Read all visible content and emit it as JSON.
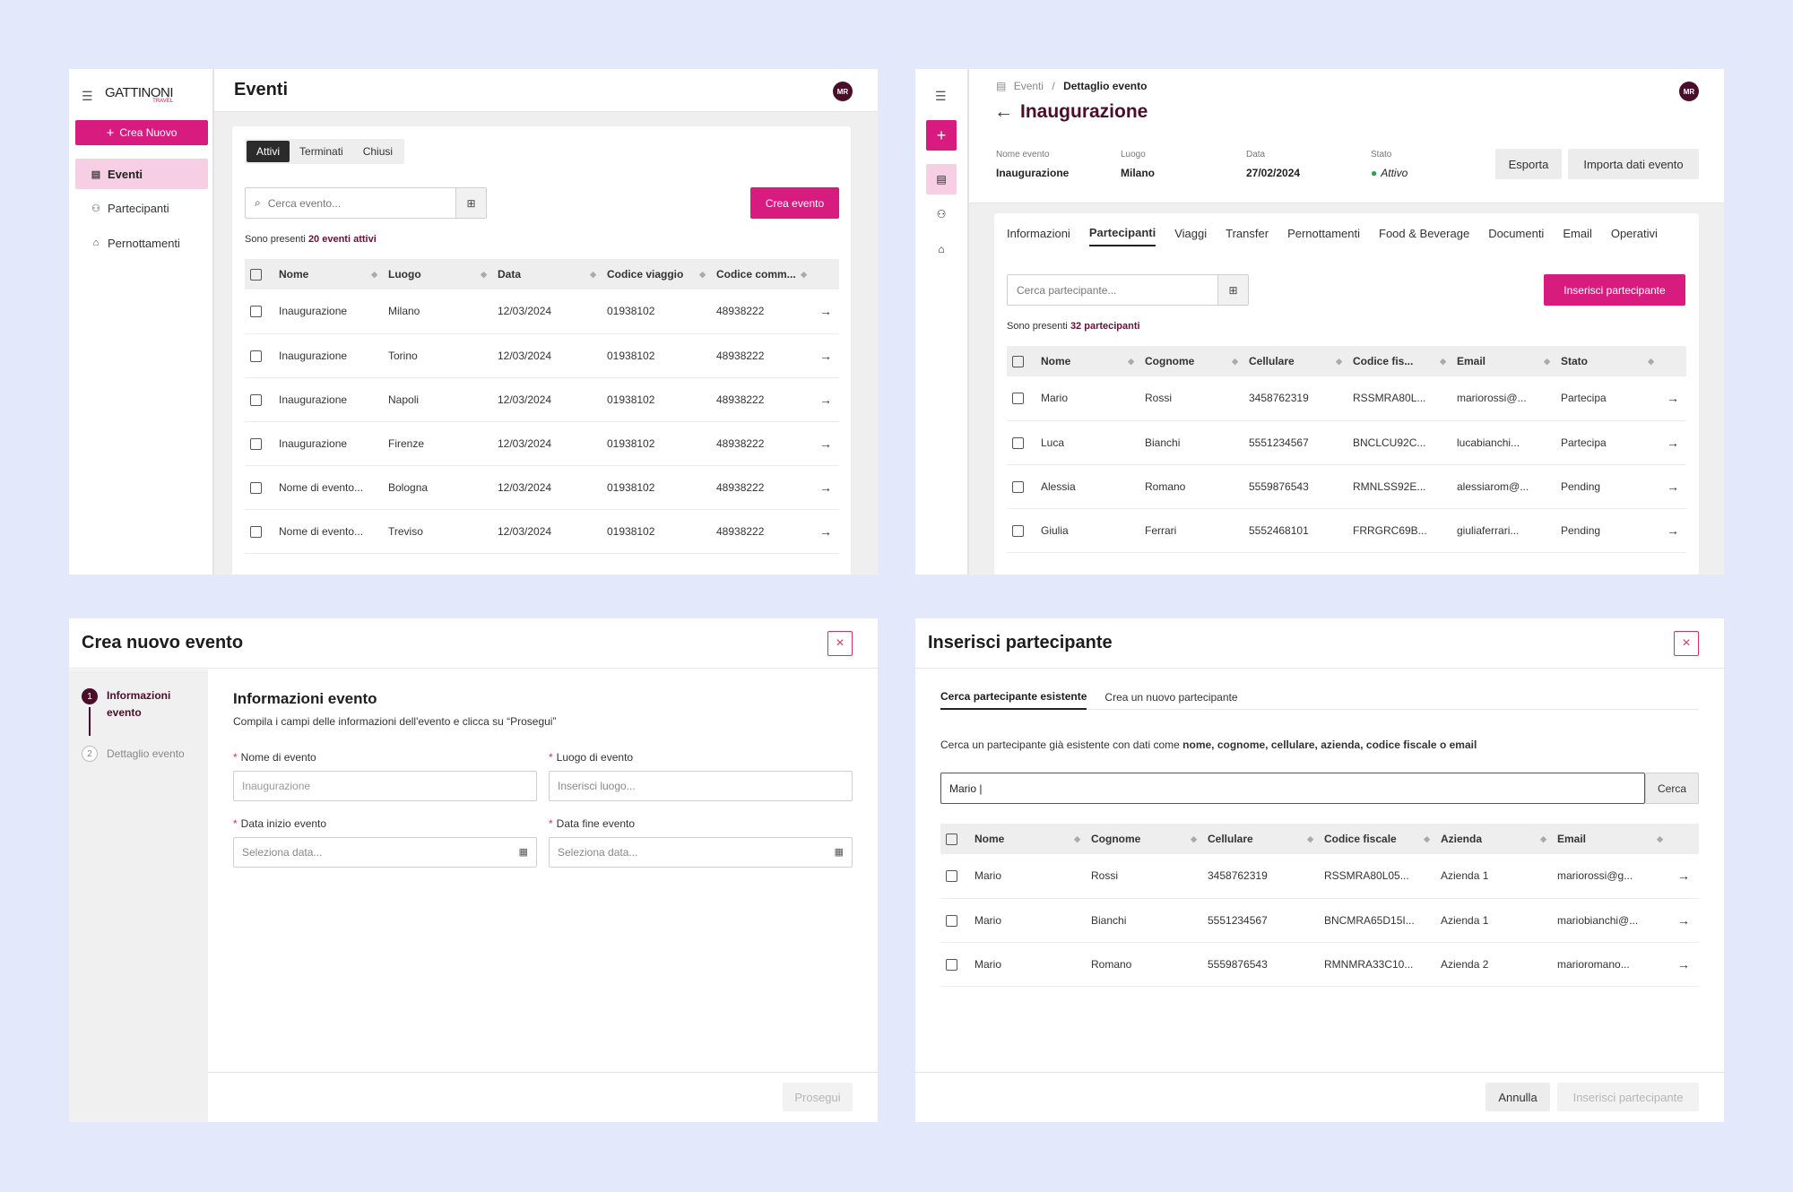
{
  "p1": {
    "logo": "GATTINONI",
    "logo_sub": "TRAVEL",
    "new_button": "Crea Nuovo",
    "nav": [
      {
        "label": "Eventi",
        "icon": "list-icon"
      },
      {
        "label": "Partecipanti",
        "icon": "users-icon"
      },
      {
        "label": "Pernottamenti",
        "icon": "hotel-icon"
      }
    ],
    "title": "Eventi",
    "avatar": "MR",
    "segments": [
      "Attivi",
      "Terminati",
      "Chiusi"
    ],
    "search_placeholder": "Cerca evento...",
    "create_button": "Crea evento",
    "count_prefix": "Sono presenti ",
    "count_value": "20 eventi attivi",
    "columns": [
      "Nome",
      "Luogo",
      "Data",
      "Codice viaggio",
      "Codice comm..."
    ],
    "rows": [
      [
        "Inaugurazione",
        "Milano",
        "12/03/2024",
        "01938102",
        "48938222"
      ],
      [
        "Inaugurazione",
        "Torino",
        "12/03/2024",
        "01938102",
        "48938222"
      ],
      [
        "Inaugurazione",
        "Napoli",
        "12/03/2024",
        "01938102",
        "48938222"
      ],
      [
        "Inaugurazione",
        "Firenze",
        "12/03/2024",
        "01938102",
        "48938222"
      ],
      [
        "Nome di evento...",
        "Bologna",
        "12/03/2024",
        "01938102",
        "48938222"
      ],
      [
        "Nome di evento...",
        "Treviso",
        "12/03/2024",
        "01938102",
        "48938222"
      ]
    ]
  },
  "p2": {
    "breadcrumb_root": "Eventi",
    "breadcrumb_sep": "/",
    "breadcrumb_current": "Dettaglio evento",
    "title": "Inaugurazione",
    "avatar": "MR",
    "meta": [
      {
        "label": "Nome evento",
        "value": "Inaugurazione"
      },
      {
        "label": "Luogo",
        "value": "Milano"
      },
      {
        "label": "Data",
        "value": "27/02/2024"
      },
      {
        "label": "Stato",
        "value": "Attivo"
      }
    ],
    "status_color": "#2e9e4f",
    "export_button": "Esporta",
    "import_button": "Importa dati evento",
    "tabs": [
      "Informazioni",
      "Partecipanti",
      "Viaggi",
      "Transfer",
      "Pernottamenti",
      "Food & Beverage",
      "Documenti",
      "Email",
      "Operativi"
    ],
    "search_placeholder": "Cerca partecipante...",
    "insert_button": "Inserisci partecipante",
    "count_prefix": "Sono presenti ",
    "count_value": "32 partecipanti",
    "columns": [
      "Nome",
      "Cognome",
      "Cellulare",
      "Codice fis...",
      "Email",
      "Stato"
    ],
    "rows": [
      [
        "Mario",
        "Rossi",
        "3458762319",
        "RSSMRA80L...",
        "mariorossi@...",
        "Partecipa"
      ],
      [
        "Luca",
        "Bianchi",
        "5551234567",
        "BNCLCU92C...",
        "lucabianchi...",
        "Partecipa"
      ],
      [
        "Alessia",
        "Romano",
        "5559876543",
        "RMNLSS92E...",
        "alessiarom@...",
        "Pending"
      ],
      [
        "Giulia",
        "Ferrari",
        "5552468101",
        "FRRGRC69B...",
        "giuliaferrari...",
        "Pending"
      ]
    ]
  },
  "p3": {
    "title": "Crea nuovo evento",
    "steps": [
      {
        "num": "1",
        "label": "Informazioni evento"
      },
      {
        "num": "2",
        "label": "Dettaglio evento"
      }
    ],
    "section_title": "Informazioni evento",
    "section_desc": "Compila i campi delle informazioni dell'evento e clicca su “Prosegui”",
    "fields": [
      {
        "label": "Nome di evento",
        "placeholder": "Inaugurazione"
      },
      {
        "label": "Luogo di evento",
        "placeholder": "Inserisci luogo..."
      },
      {
        "label": "Data inizio evento",
        "placeholder": "Seleziona data..."
      },
      {
        "label": "Data fine evento",
        "placeholder": "Seleziona data..."
      }
    ],
    "required_mark": "*",
    "next_button": "Prosegui"
  },
  "p4": {
    "title": "Inserisci partecipante",
    "tabs": [
      "Cerca partecipante esistente",
      "Crea un nuovo partecipante"
    ],
    "desc_prefix": "Cerca un partecipante già esistente con dati come ",
    "desc_bold": "nome, cognome, cellulare, azienda, codice fiscale o email",
    "search_value": "Mario |",
    "search_button": "Cerca",
    "columns": [
      "Nome",
      "Cognome",
      "Cellulare",
      "Codice fiscale",
      "Azienda",
      "Email"
    ],
    "rows": [
      [
        "Mario",
        "Rossi",
        "3458762319",
        "RSSMRA80L05...",
        "Azienda 1",
        "mariorossi@g..."
      ],
      [
        "Mario",
        "Bianchi",
        "5551234567",
        "BNCMRA65D15I...",
        "Azienda 1",
        "mariobianchi@..."
      ],
      [
        "Mario",
        "Romano",
        "5559876543",
        "RMNMRA33C10...",
        "Azienda 2",
        "marioromano..."
      ]
    ],
    "cancel_button": "Annulla",
    "insert_button": "Inserisci partecipante"
  },
  "colors": {
    "accent": "#d81b7e",
    "dark_accent": "#4a0e2a"
  }
}
